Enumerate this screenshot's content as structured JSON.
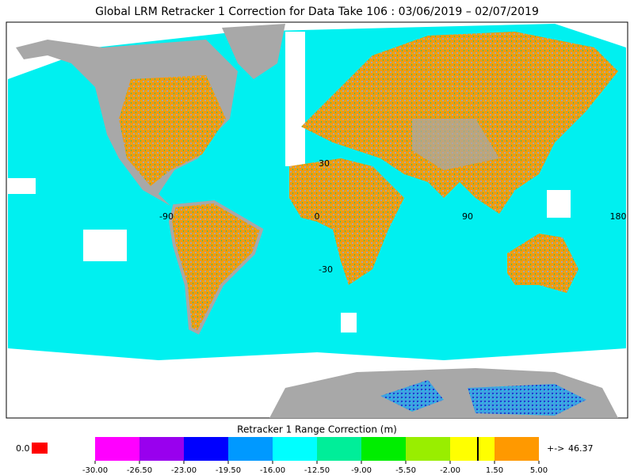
{
  "title": "Global LRM Retracker 1 Correction for Data Take 106 : 03/06/2019 – 02/07/2019",
  "map": {
    "lat_labels": [
      30,
      -30
    ],
    "lon_labels": [
      -90,
      0,
      90,
      180
    ]
  },
  "colorbar": {
    "title": "Retracker 1 Range Correction (m)",
    "range": [
      -30,
      5
    ],
    "ticks": [
      {
        "value": -30,
        "label": "-30.00"
      },
      {
        "value": -26.5,
        "label": "-26.50"
      },
      {
        "value": -23,
        "label": "-23.00"
      },
      {
        "value": -19.5,
        "label": "-19.50"
      },
      {
        "value": -16,
        "label": "-16.00"
      },
      {
        "value": -12.5,
        "label": "-12.50"
      },
      {
        "value": -9,
        "label": "-9.00"
      },
      {
        "value": -5.5,
        "label": "-5.50"
      },
      {
        "value": -2,
        "label": "-2.00"
      },
      {
        "value": 1.5,
        "label": "1.50"
      },
      {
        "value": 5,
        "label": "5.00"
      }
    ],
    "colors": [
      "#ff00ff",
      "#9900ee",
      "#0000ff",
      "#0099ff",
      "#00ffff",
      "#00ee99",
      "#00ee00",
      "#99ee00",
      "#ffff00",
      "#ff9900"
    ]
  },
  "below_range": {
    "label": "0.0",
    "color": "#ff0000"
  },
  "above_range": {
    "arrow": "+->",
    "label": "46.37",
    "color": "#ff9900"
  }
}
